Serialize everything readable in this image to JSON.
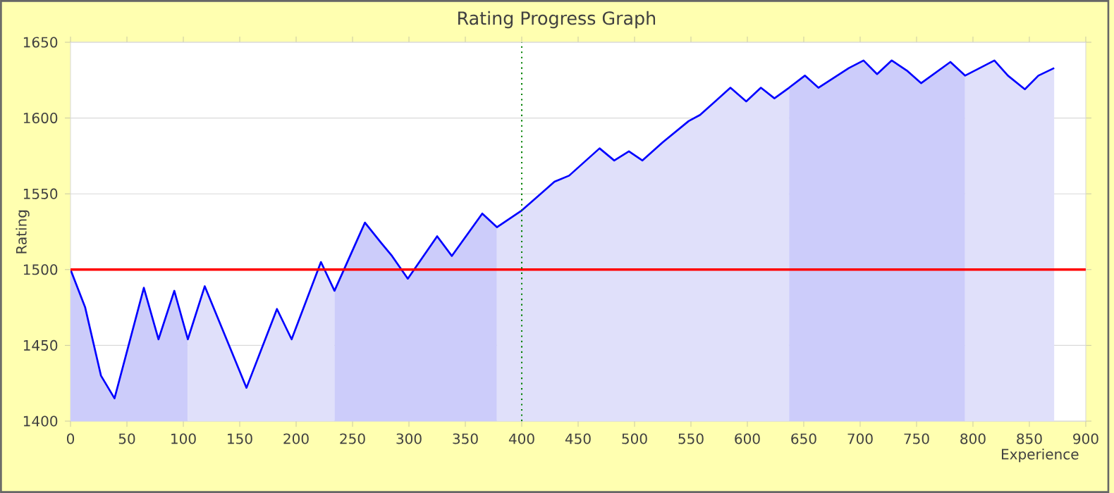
{
  "chart_data": {
    "type": "line",
    "title": "Rating Progress Graph",
    "xlabel": "Experience",
    "ylabel": "Rating",
    "xlim": [
      0,
      900
    ],
    "ylim": [
      1400,
      1650
    ],
    "xticks": [
      0,
      50,
      100,
      150,
      200,
      250,
      300,
      350,
      400,
      450,
      500,
      550,
      600,
      650,
      700,
      750,
      800,
      850,
      900
    ],
    "yticks": [
      1400,
      1450,
      1500,
      1550,
      1600,
      1650
    ],
    "grid": "y",
    "marker": "none",
    "line_style": "solid",
    "series": [
      {
        "type": "area",
        "color": "#ccccfa",
        "x": [
          0,
          13,
          27,
          39,
          65,
          78,
          92,
          104
        ],
        "values": [
          1500,
          1475,
          1430,
          1415,
          1488,
          1454,
          1486,
          1454
        ]
      },
      {
        "type": "area",
        "color": "#e0e0fa",
        "x": [
          104,
          119,
          156,
          183,
          196,
          222,
          234
        ],
        "values": [
          1454,
          1489,
          1422,
          1474,
          1454,
          1505,
          1486
        ]
      },
      {
        "type": "area",
        "color": "#ccccfa",
        "x": [
          234,
          261,
          275,
          285,
          299,
          325,
          338,
          365,
          378
        ],
        "values": [
          1486,
          1531,
          1518,
          1509,
          1494,
          1522,
          1509,
          1537,
          1528
        ]
      },
      {
        "type": "area",
        "color": "#e0e0fa",
        "x": [
          378,
          400,
          429,
          442,
          469,
          482,
          495,
          507,
          525,
          548,
          558,
          585,
          599,
          612,
          624,
          637
        ],
        "values": [
          1528,
          1539,
          1558,
          1562,
          1580,
          1572,
          1578,
          1572,
          1584,
          1598,
          1602,
          1620,
          1611,
          1620,
          1613,
          1620
        ]
      },
      {
        "type": "area",
        "color": "#ccccfa",
        "x": [
          637,
          651,
          663,
          690,
          703,
          715,
          728,
          742,
          754,
          780,
          793
        ],
        "values": [
          1620,
          1628,
          1620,
          1633,
          1638,
          1629,
          1638,
          1631,
          1623,
          1637,
          1628
        ]
      },
      {
        "type": "area",
        "color": "#e0e0fa",
        "x": [
          793,
          819,
          831,
          846,
          858,
          872
        ],
        "values": [
          1628,
          1638,
          1628,
          1619,
          1628,
          1633
        ]
      },
      {
        "color": "#0000ff",
        "x": [
          0,
          13,
          27,
          39,
          65,
          78,
          92,
          104,
          119,
          156,
          183,
          196,
          222,
          234,
          261,
          275,
          285,
          299,
          325,
          338,
          365,
          378,
          400,
          429,
          442,
          469,
          482,
          495,
          507,
          525,
          548,
          558,
          585,
          599,
          612,
          624,
          637,
          651,
          663,
          690,
          703,
          715,
          728,
          742,
          754,
          780,
          793,
          819,
          831,
          846,
          858,
          872
        ],
        "values": [
          1500,
          1475,
          1430,
          1415,
          1488,
          1454,
          1486,
          1454,
          1489,
          1422,
          1474,
          1454,
          1505,
          1486,
          1531,
          1518,
          1509,
          1494,
          1522,
          1509,
          1537,
          1528,
          1539,
          1558,
          1562,
          1580,
          1572,
          1578,
          1572,
          1584,
          1598,
          1602,
          1620,
          1611,
          1620,
          1613,
          1620,
          1628,
          1620,
          1633,
          1638,
          1629,
          1638,
          1631,
          1623,
          1637,
          1628,
          1638,
          1628,
          1619,
          1628,
          1633
        ]
      }
    ],
    "ref_lines": [
      {
        "axis": "y",
        "value": 1500,
        "color": "#ff0000",
        "line_style": "solid"
      },
      {
        "axis": "x",
        "value": 400,
        "color": "#008000",
        "line_style": "dotted"
      }
    ]
  }
}
